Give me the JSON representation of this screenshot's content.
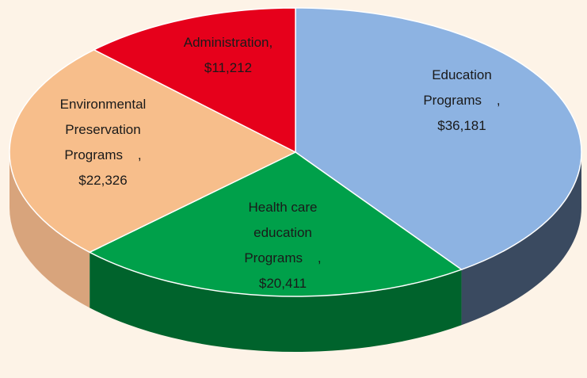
{
  "chart_data": {
    "type": "pie",
    "categories": [
      "Education Programs",
      "Health care education Programs",
      "Environmental Preservation Programs",
      "Administration"
    ],
    "values": [
      36181,
      20411,
      22326,
      11212
    ],
    "value_labels": [
      "$36,181",
      "$20,411",
      "$22,326",
      "$11,212"
    ],
    "separator": ",",
    "colors": [
      "#8db3e2",
      "#00a04a",
      "#f7be8b",
      "#e6001b"
    ],
    "side_colors": [
      "#3a4a60",
      "#00632c",
      "#d8a47c",
      "#a80014"
    ]
  }
}
